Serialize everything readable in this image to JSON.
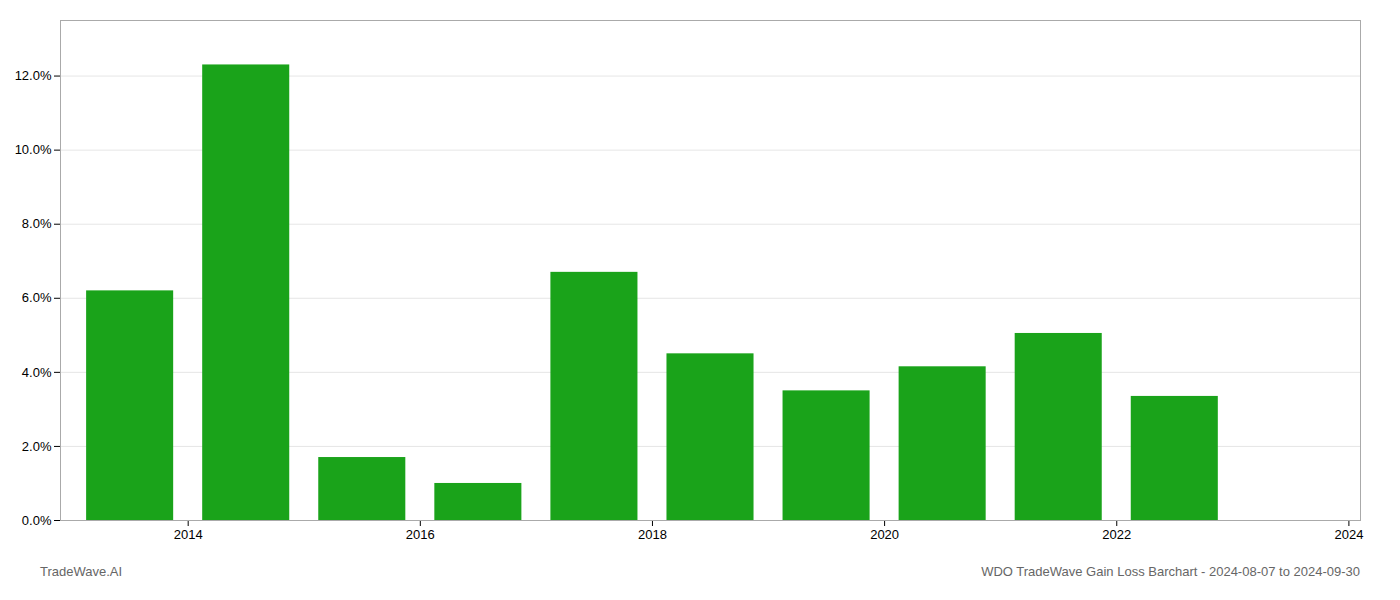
{
  "chart_data": {
    "type": "bar",
    "x": [
      2014,
      2015,
      2016,
      2017,
      2018,
      2019,
      2020,
      2021,
      2022,
      2023
    ],
    "values": [
      0.062,
      0.123,
      0.017,
      0.01,
      0.067,
      0.045,
      0.035,
      0.0415,
      0.0505,
      0.0335
    ],
    "color": "#1aa31a",
    "xlim": [
      2013.4,
      2024.6
    ],
    "xticks": [
      {
        "value": 2014.5,
        "label": "2014"
      },
      {
        "value": 2016.5,
        "label": "2016"
      },
      {
        "value": 2018.5,
        "label": "2018"
      },
      {
        "value": 2020.5,
        "label": "2020"
      },
      {
        "value": 2022.5,
        "label": "2022"
      },
      {
        "value": 2024.5,
        "label": "2024"
      }
    ],
    "ylim": [
      0,
      0.135
    ],
    "yticks": [
      {
        "value": 0.0,
        "label": "0.0%"
      },
      {
        "value": 0.02,
        "label": "2.0%"
      },
      {
        "value": 0.04,
        "label": "4.0%"
      },
      {
        "value": 0.06,
        "label": "6.0%"
      },
      {
        "value": 0.08,
        "label": "8.0%"
      },
      {
        "value": 0.1,
        "label": "10.0%"
      },
      {
        "value": 0.12,
        "label": "12.0%"
      }
    ],
    "grid": true,
    "annotations": [
      "TradeWave.AI",
      "WDO TradeWave Gain Loss Barchart - 2024-08-07 to 2024-09-30"
    ]
  }
}
